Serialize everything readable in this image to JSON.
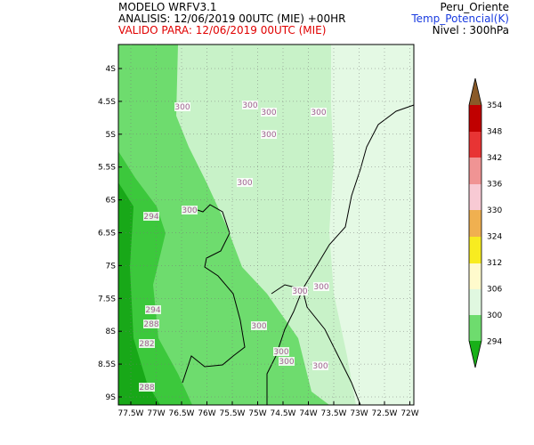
{
  "header": {
    "model": "MODELO WRFV3.1",
    "analysis": "ANALISIS: 12/06/2019 00UTC (MIE) +00HR",
    "valid": "VALIDO PARA: 12/06/2019 00UTC (MIE)",
    "region": "Peru_Oriente",
    "variable": "Temp_Potencial(K)",
    "level": "Nivel : 300hPa"
  },
  "map": {
    "lat_labels": [
      "4S",
      "4.5S",
      "5S",
      "5.5S",
      "6S",
      "6.5S",
      "7S",
      "7.5S",
      "8S",
      "8.5S",
      "9S"
    ],
    "lon_labels": [
      "77.5W",
      "77W",
      "76.5W",
      "76W",
      "75.5W",
      "75W",
      "74.5W",
      "74W",
      "73.5W",
      "73W",
      "72.5W",
      "72W"
    ],
    "contour_labels": [
      "300",
      "300",
      "300",
      "300",
      "300",
      "300",
      "300",
      "300",
      "300",
      "300",
      "300",
      "300",
      "300",
      "294",
      "294",
      "288",
      "282",
      "288"
    ]
  },
  "colorbar": {
    "labels": [
      "354",
      "348",
      "342",
      "336",
      "330",
      "324",
      "312",
      "306",
      "300",
      "294"
    ]
  }
}
